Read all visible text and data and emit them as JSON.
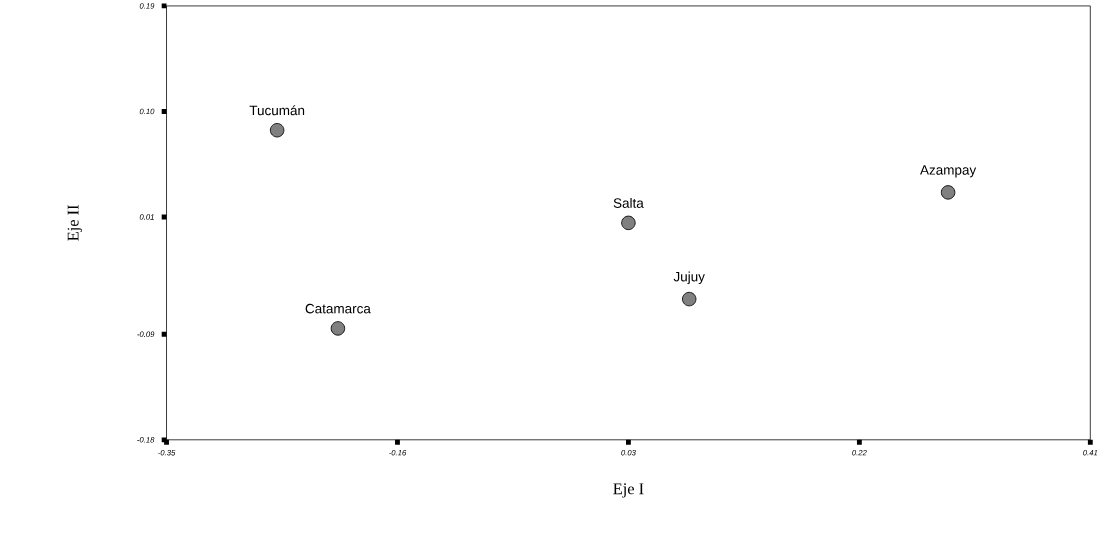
{
  "chart_data": {
    "type": "scatter",
    "xlabel": "Eje I",
    "ylabel": "Eje II",
    "series": [
      {
        "color": "#808080",
        "x": [
          -0.259,
          -0.209,
          0.03,
          0.08,
          0.293
        ],
        "values": [
          0.084,
          -0.085,
          0.005,
          -0.06,
          0.031
        ]
      }
    ],
    "annotations": [
      {
        "text": "Tucumán",
        "x": -0.259,
        "y": 0.084
      },
      {
        "text": "Catamarca",
        "x": -0.209,
        "y": -0.085
      },
      {
        "text": "Salta",
        "x": 0.03,
        "y": 0.005
      },
      {
        "text": "Jujuy",
        "x": 0.08,
        "y": -0.06
      },
      {
        "text": "Azampay",
        "x": 0.293,
        "y": 0.031
      }
    ],
    "xlim": [
      -0.35,
      0.41
    ],
    "ylim": [
      -0.18,
      0.19
    ],
    "xticks": [
      -0.35,
      -0.16,
      0.03,
      0.22,
      0.41
    ],
    "yticks": [
      -0.18,
      -0.09,
      0.01,
      {
        "value": 0.1,
        "label": "0.10"
      },
      0.19
    ],
    "marker": "circle"
  }
}
